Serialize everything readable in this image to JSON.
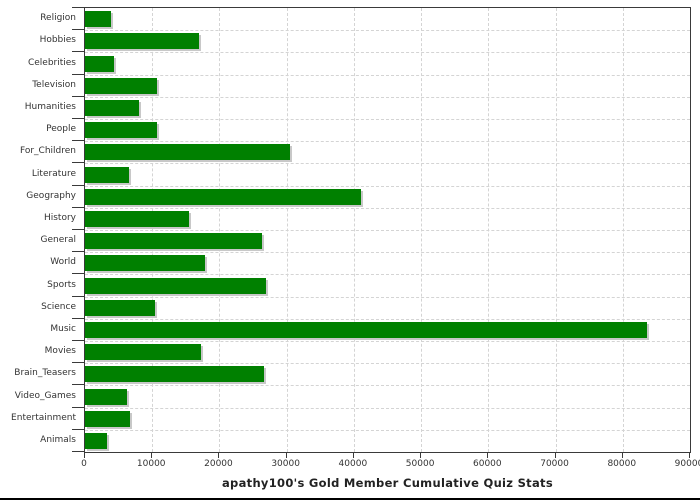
{
  "chart_data": {
    "type": "bar",
    "orientation": "horizontal",
    "title": "apathy100's Gold Member Cumulative Quiz Stats",
    "categories": [
      "Religion",
      "Hobbies",
      "Celebrities",
      "Television",
      "Humanities",
      "People",
      "For_Children",
      "Literature",
      "Geography",
      "History",
      "General",
      "World",
      "Sports",
      "Science",
      "Music",
      "Movies",
      "Brain_Teasers",
      "Video_Games",
      "Entertainment",
      "Animals"
    ],
    "values": [
      3800,
      17000,
      4300,
      10700,
      8000,
      10700,
      30500,
      6500,
      41000,
      15500,
      26400,
      17900,
      26900,
      10400,
      83600,
      17200,
      26600,
      6200,
      6700,
      3200
    ],
    "xlim": [
      0,
      90000
    ],
    "x_ticks": [
      0,
      10000,
      20000,
      30000,
      40000,
      50000,
      60000,
      70000,
      80000,
      90000
    ],
    "x_tick_labels": [
      "0",
      "10000",
      "20000",
      "30000",
      "40000",
      "50000",
      "60000",
      "70000",
      "80000",
      "90000"
    ],
    "grid": true,
    "legend": "none",
    "bar_color": "#008000",
    "shadow_color": "#c8c8c8",
    "grid_color": "#d4d4d4",
    "axis_color": "#3a3a3a",
    "text_color": "#333333"
  }
}
